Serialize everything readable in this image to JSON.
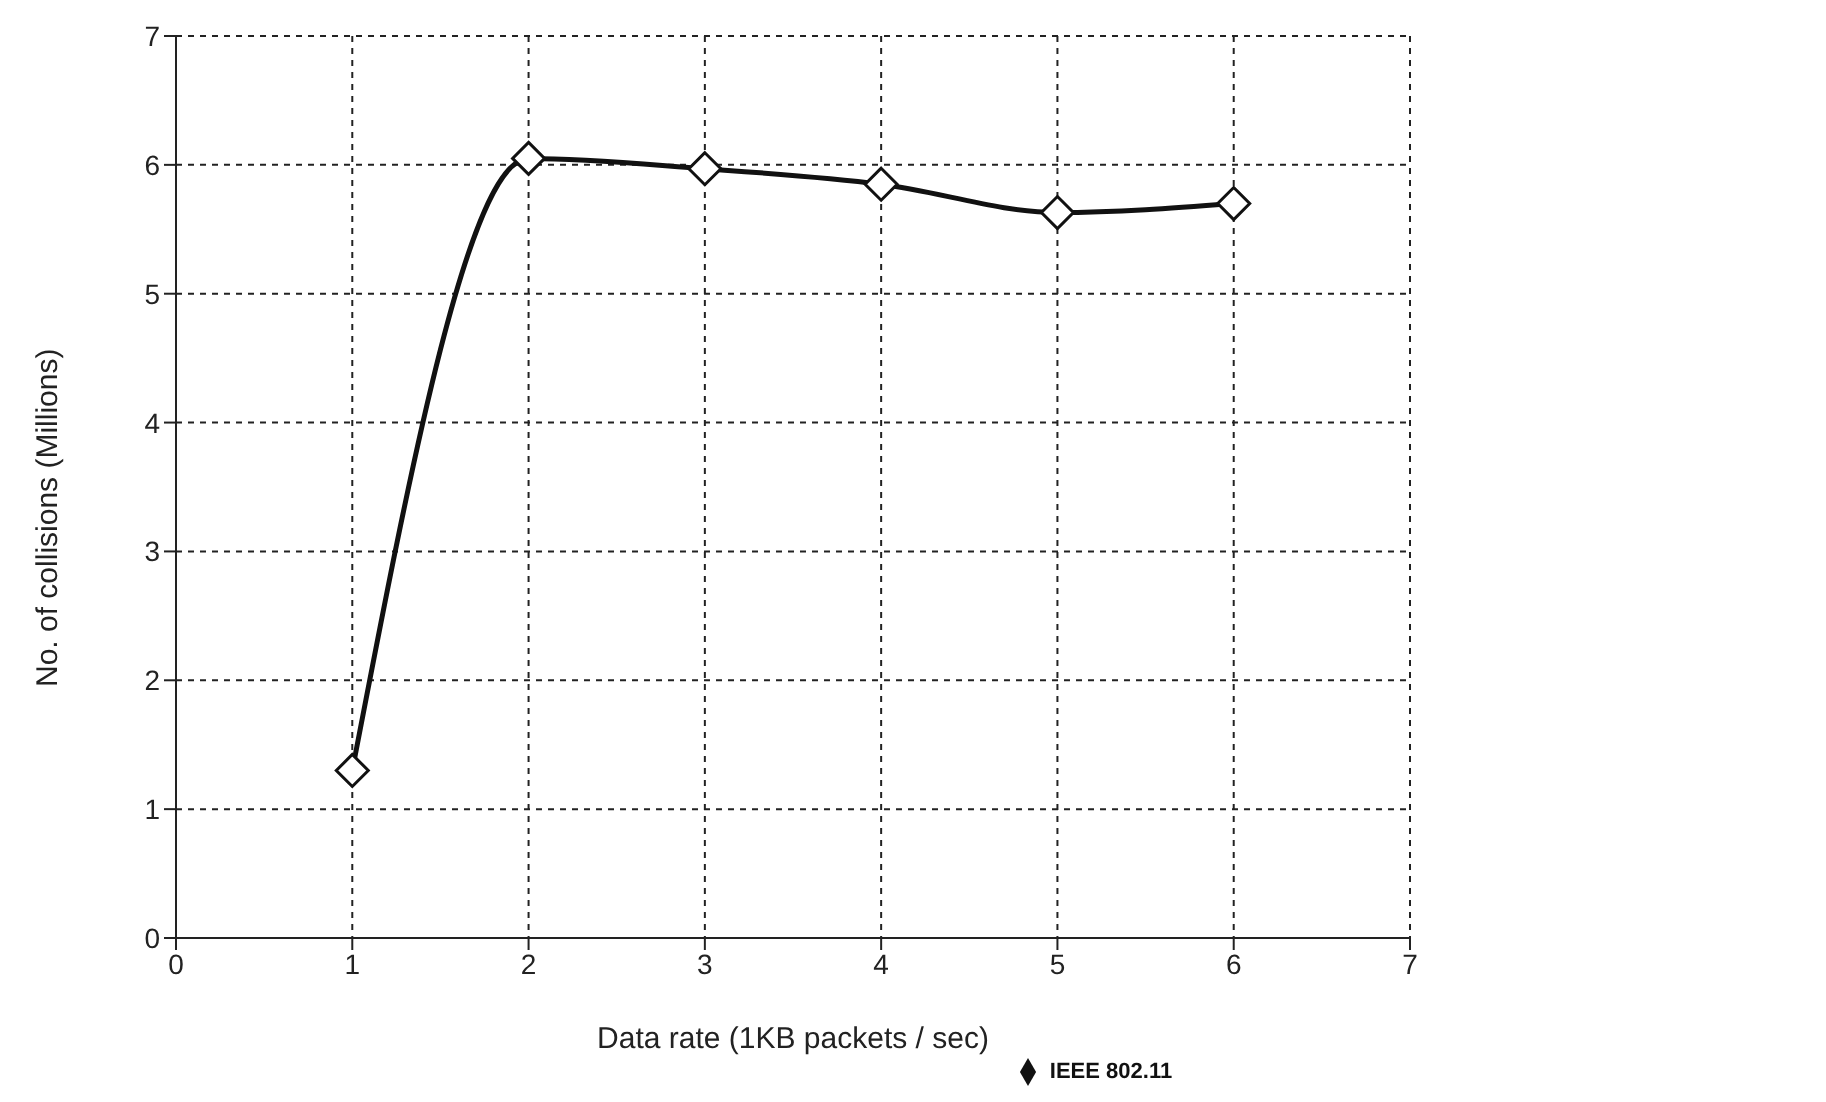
{
  "chart_data": {
    "type": "line",
    "xlabel": "Data rate (1KB packets / sec)",
    "ylabel": "No. of collisions (Millions)",
    "x": [
      1,
      2,
      3,
      4,
      5,
      6
    ],
    "series": [
      {
        "name": "IEEE 802.11",
        "color": "#111111",
        "values": [
          1.3,
          6.05,
          5.97,
          5.85,
          5.63,
          5.7
        ]
      }
    ],
    "xlim": [
      0,
      7
    ],
    "xticks": [
      0,
      1,
      2,
      3,
      4,
      5,
      6,
      7
    ],
    "ylim": [
      0,
      7
    ],
    "yticks": [
      0,
      1,
      2,
      3,
      4,
      5,
      6,
      7
    ],
    "grid": true,
    "legend": "bottom",
    "marker": "diamond",
    "line_style": "solid"
  }
}
